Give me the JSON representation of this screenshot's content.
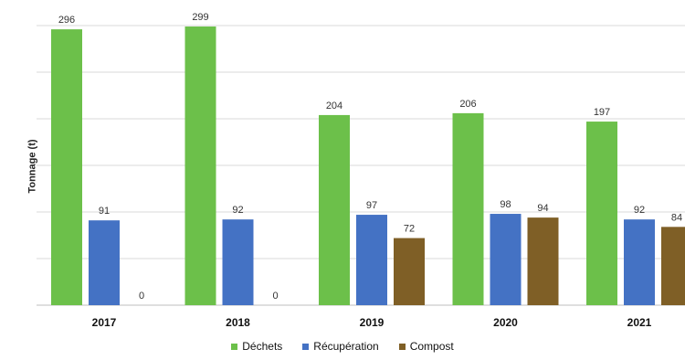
{
  "chart_data": {
    "type": "bar",
    "ylabel": "Tonnage (t)",
    "xlabel": "",
    "categories": [
      "2017",
      "2018",
      "2019",
      "2020",
      "2021"
    ],
    "ylim": [
      0,
      300
    ],
    "grid": true,
    "legend_position": "bottom",
    "series": [
      {
        "name": "Déchets",
        "color": "#6cc04a",
        "values": [
          296,
          299,
          204,
          206,
          197
        ]
      },
      {
        "name": "Récupération",
        "color": "#4472c4",
        "values": [
          91,
          92,
          97,
          98,
          92
        ]
      },
      {
        "name": "Compost",
        "color": "#7f5f26",
        "values": [
          0,
          0,
          72,
          94,
          84
        ]
      }
    ]
  }
}
